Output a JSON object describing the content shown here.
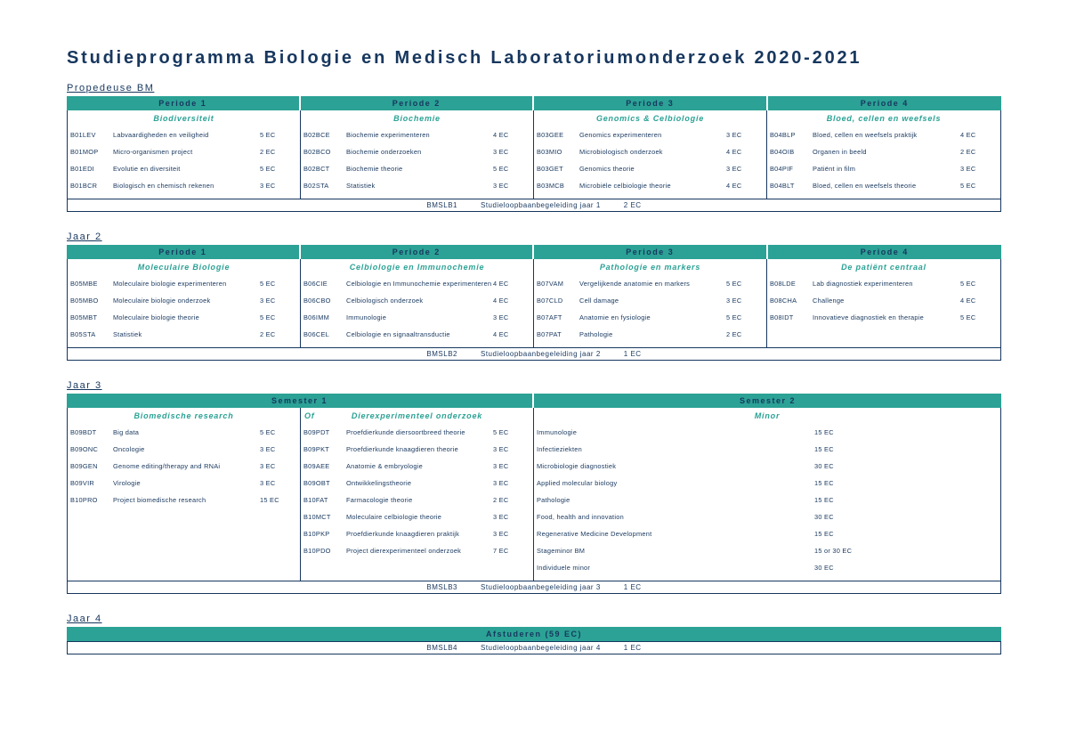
{
  "page": {
    "title": "Studieprogramma Biologie en Medisch Laboratoriumonderzoek 2020-2021"
  },
  "colors": {
    "teal": "#2BA295",
    "navy": "#17375E"
  },
  "sections": [
    {
      "type": "periods",
      "label": "Propedeuse BM",
      "columns": [
        {
          "period": "Periode 1",
          "subtitle": "Biodiversiteit",
          "courses": [
            {
              "code": "B01LEV",
              "name": "Labvaardigheden en veiligheid",
              "ec": "5 EC"
            },
            {
              "code": "B01MOP",
              "name": "Micro-organismen project",
              "ec": "2 EC"
            },
            {
              "code": "B01EDI",
              "name": "Evolutie en diversiteit",
              "ec": "5 EC"
            },
            {
              "code": "B01BCR",
              "name": "Biologisch en chemisch rekenen",
              "ec": "3 EC"
            }
          ]
        },
        {
          "period": "Periode 2",
          "subtitle": "Biochemie",
          "courses": [
            {
              "code": "B02BCE",
              "name": "Biochemie experimenteren",
              "ec": "4 EC"
            },
            {
              "code": "B02BCO",
              "name": "Biochemie onderzoeken",
              "ec": "3 EC"
            },
            {
              "code": "B02BCT",
              "name": "Biochemie theorie",
              "ec": "5 EC"
            },
            {
              "code": "B02STA",
              "name": "Statistiek",
              "ec": "3 EC"
            }
          ]
        },
        {
          "period": "Periode 3",
          "subtitle": "Genomics & Celbiologie",
          "courses": [
            {
              "code": "B03GEE",
              "name": "Genomics experimenteren",
              "ec": "3 EC"
            },
            {
              "code": "B03MIO",
              "name": "Microbiologisch onderzoek",
              "ec": "4 EC"
            },
            {
              "code": "B03GET",
              "name": "Genomics theorie",
              "ec": "3 EC"
            },
            {
              "code": "B03MCB",
              "name": "Microbiële celbiologie theorie",
              "ec": "4 EC"
            }
          ]
        },
        {
          "period": "Periode 4",
          "subtitle": "Bloed, cellen en weefsels",
          "courses": [
            {
              "code": "B04BLP",
              "name": "Bloed, cellen en weefsels praktijk",
              "ec": "4 EC"
            },
            {
              "code": "B04OIB",
              "name": "Organen in beeld",
              "ec": "2 EC"
            },
            {
              "code": "B04PIF",
              "name": "Patiënt in film",
              "ec": "3 EC"
            },
            {
              "code": "B04BLT",
              "name": "Bloed, cellen en weefsels theorie",
              "ec": "5 EC"
            }
          ]
        }
      ],
      "slb": {
        "code": "BMSLB1",
        "name": "Studieloopbaanbegeleiding jaar 1",
        "ec": "2 EC"
      }
    },
    {
      "type": "periods",
      "label": "Jaar 2",
      "columns": [
        {
          "period": "Periode 1",
          "subtitle": "Moleculaire Biologie",
          "courses": [
            {
              "code": "B05MBE",
              "name": "Moleculaire biologie experimenteren",
              "ec": "5 EC"
            },
            {
              "code": "B05MBO",
              "name": "Moleculaire biologie onderzoek",
              "ec": "3 EC"
            },
            {
              "code": "B05MBT",
              "name": "Moleculaire biologie theorie",
              "ec": "5 EC"
            },
            {
              "code": "B05STA",
              "name": "Statistiek",
              "ec": "2 EC"
            }
          ]
        },
        {
          "period": "Periode 2",
          "subtitle": "Celbiologie en Immunochemie",
          "courses": [
            {
              "code": "B06CIE",
              "name": "Celbiologie en Immunochemie experimenteren",
              "ec": "4 EC"
            },
            {
              "code": "B06CBO",
              "name": "Celbiologisch onderzoek",
              "ec": "4 EC"
            },
            {
              "code": "B06IMM",
              "name": "Immunologie",
              "ec": "3 EC"
            },
            {
              "code": "B06CEL",
              "name": "Celbiologie en signaaltransductie",
              "ec": "4 EC"
            }
          ]
        },
        {
          "period": "Periode 3",
          "subtitle": "Pathologie en markers",
          "courses": [
            {
              "code": "B07VAM",
              "name": "Vergelijkende anatomie en markers",
              "ec": "5 EC"
            },
            {
              "code": "B07CLD",
              "name": "Cell damage",
              "ec": "3 EC"
            },
            {
              "code": "B07AFT",
              "name": "Anatomie en fysiologie",
              "ec": "5 EC"
            },
            {
              "code": "B07PAT",
              "name": "Pathologie",
              "ec": "2 EC"
            }
          ]
        },
        {
          "period": "Periode 4",
          "subtitle": "De patiënt centraal",
          "courses": [
            {
              "code": "B08LDE",
              "name": "Lab diagnostiek experimenteren",
              "ec": "5 EC"
            },
            {
              "code": "B08CHA",
              "name": "Challenge",
              "ec": "4 EC"
            },
            {
              "code": "B08IDT",
              "name": "Innovatieve diagnostiek en therapie",
              "ec": "5 EC"
            }
          ]
        }
      ],
      "slb": {
        "code": "BMSLB2",
        "name": "Studieloopbaanbegeleiding jaar 2",
        "ec": "1 EC"
      }
    },
    {
      "type": "semesters",
      "label": "Jaar 3",
      "semester1": {
        "label": "Semester 1",
        "of_label": "Of",
        "track_a": {
          "subtitle": "Biomedische research",
          "courses": [
            {
              "code": "B09BDT",
              "name": "Big data",
              "ec": "5 EC"
            },
            {
              "code": "B09ONC",
              "name": "Oncologie",
              "ec": "3 EC"
            },
            {
              "code": "B09GEN",
              "name": "Genome editing/therapy and RNAi",
              "ec": "3 EC"
            },
            {
              "code": "B09VIR",
              "name": "Virologie",
              "ec": "3 EC"
            },
            {
              "code": "B10PRO",
              "name": "Project biomedische research",
              "ec": "15 EC"
            }
          ]
        },
        "track_b": {
          "subtitle": "Dierexperimenteel onderzoek",
          "courses": [
            {
              "code": "B09PDT",
              "name": "Proefdierkunde diersoortbreed theorie",
              "ec": "5 EC"
            },
            {
              "code": "B09PKT",
              "name": "Proefdierkunde knaagdieren theorie",
              "ec": "3 EC"
            },
            {
              "code": "B09AEE",
              "name": "Anatomie & embryologie",
              "ec": "3 EC"
            },
            {
              "code": "B09OBT",
              "name": "Ontwikkelingstheorie",
              "ec": "3 EC"
            },
            {
              "code": "B10FAT",
              "name": "Farmacologie theorie",
              "ec": "2 EC"
            },
            {
              "code": "B10MCT",
              "name": "Moleculaire celbiologie theorie",
              "ec": "3 EC"
            },
            {
              "code": "B10PKP",
              "name": "Proefdierkunde knaagdieren praktijk",
              "ec": "3 EC"
            },
            {
              "code": "B10PDO",
              "name": "Project dierexperimenteel onderzoek",
              "ec": "7 EC"
            }
          ]
        }
      },
      "semester2": {
        "label": "Semester 2",
        "subtitle": "Minor",
        "minors": [
          {
            "name": "Immunologie",
            "ec": "15 EC"
          },
          {
            "name": "Infectieziekten",
            "ec": "15 EC"
          },
          {
            "name": "Microbiologie diagnostiek",
            "ec": "30 EC"
          },
          {
            "name": "Applied molecular biology",
            "ec": "15 EC"
          },
          {
            "name": "Pathologie",
            "ec": "15 EC"
          },
          {
            "name": "Food, health and innovation",
            "ec": "30 EC"
          },
          {
            "name": "Regenerative Medicine Development",
            "ec": "15 EC"
          },
          {
            "name": "Stageminor BM",
            "ec": "15 or 30 EC"
          },
          {
            "name": "Individuele minor",
            "ec": "30 EC"
          }
        ]
      },
      "slb": {
        "code": "BMSLB3",
        "name": "Studieloopbaanbegeleiding jaar 3",
        "ec": "1 EC"
      }
    },
    {
      "type": "single",
      "label": "Jaar 4",
      "header": "Afstuderen (59 EC)",
      "slb": {
        "code": "BMSLB4",
        "name": "Studieloopbaanbegeleiding jaar 4",
        "ec": "1 EC"
      }
    }
  ]
}
